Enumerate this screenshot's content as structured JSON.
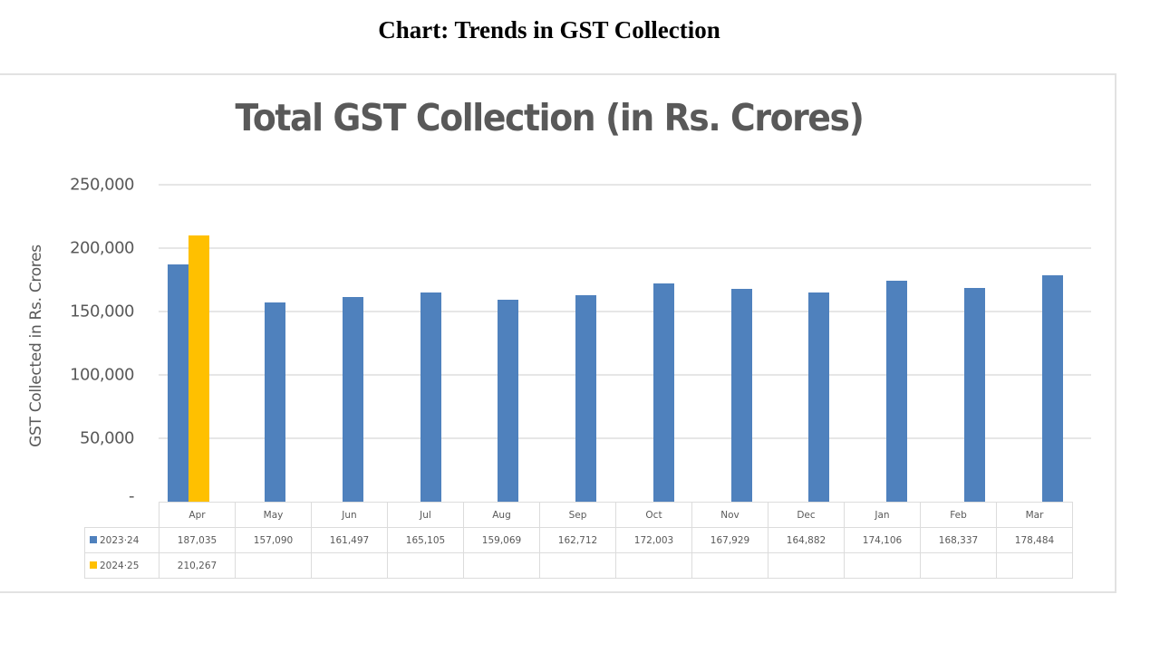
{
  "page": {
    "heading": "Chart: Trends in GST Collection"
  },
  "chart_data": {
    "type": "bar",
    "title": "Total GST Collection (in Rs. Crores)",
    "xlabel": "",
    "ylabel": "GST Collected in Rs. Crores",
    "ylim": [
      0,
      250000
    ],
    "yticks": [
      0,
      50000,
      100000,
      150000,
      200000,
      250000
    ],
    "ytick_labels": [
      "-",
      "50,000",
      "100,000",
      "150,000",
      "200,000",
      "250,000"
    ],
    "grid": true,
    "legend_position": "data-table",
    "categories": [
      "Apr",
      "May",
      "Jun",
      "Jul",
      "Aug",
      "Sep",
      "Oct",
      "Nov",
      "Dec",
      "Jan",
      "Feb",
      "Mar"
    ],
    "series": [
      {
        "name": "2023-24",
        "color": "#4f81bd",
        "values": [
          187035,
          157090,
          161497,
          165105,
          159069,
          162712,
          172003,
          167929,
          164882,
          174106,
          168337,
          178484
        ],
        "labels": [
          "187,035",
          "157,090",
          "161,497",
          "165,105",
          "159,069",
          "162,712",
          "172,003",
          "167,929",
          "164,882",
          "174,106",
          "168,337",
          "178,484"
        ]
      },
      {
        "name": "2024-25",
        "color": "#ffc000",
        "values": [
          210267,
          null,
          null,
          null,
          null,
          null,
          null,
          null,
          null,
          null,
          null,
          null
        ],
        "labels": [
          "210,267",
          "",
          "",
          "",
          "",
          "",
          "",
          "",
          "",
          "",
          "",
          ""
        ]
      }
    ]
  }
}
